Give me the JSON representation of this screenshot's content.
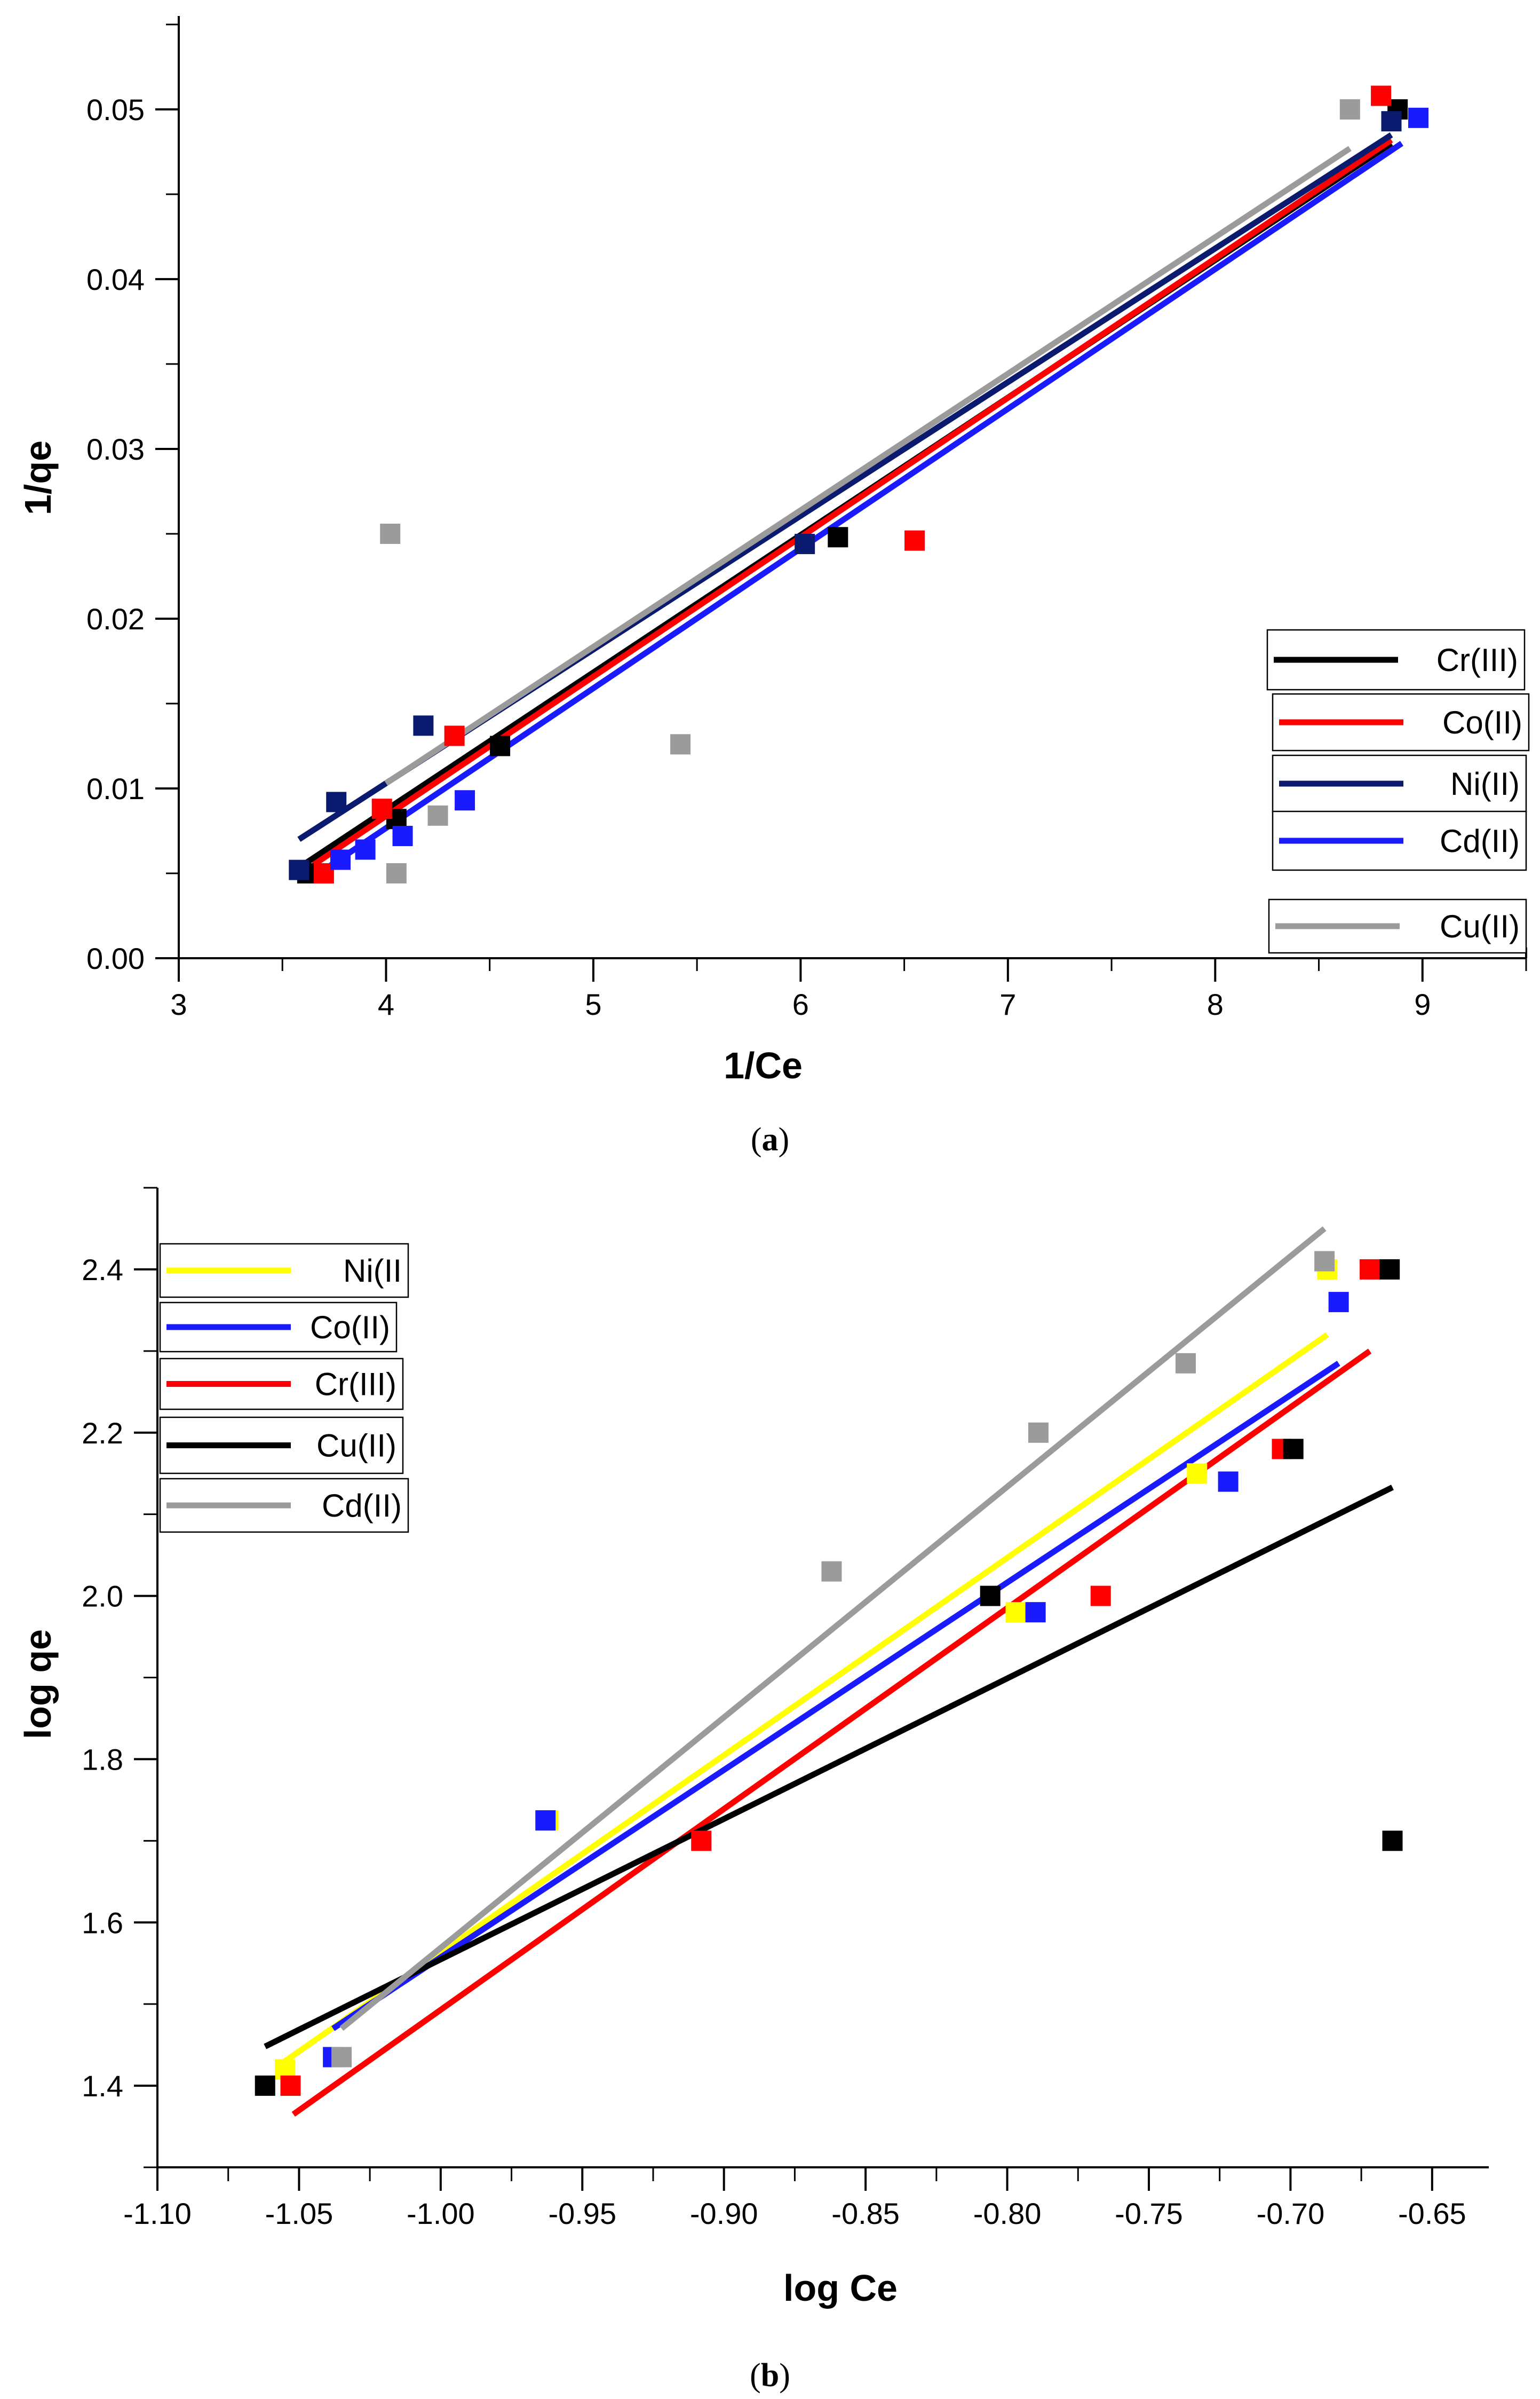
{
  "chart_data": [
    {
      "type": "scatter",
      "caption": "(a)",
      "xlabel": "1/Ce",
      "ylabel": "1/qe",
      "xlim": [
        3,
        9.5
      ],
      "ylim": [
        0,
        0.0555
      ],
      "xticks": [
        3,
        4,
        5,
        6,
        7,
        8,
        9
      ],
      "xtick_labels": [
        "3",
        "4",
        "5",
        "6",
        "7",
        "8",
        "9"
      ],
      "yticks": [
        0.0,
        0.01,
        0.02,
        0.03,
        0.04,
        0.05
      ],
      "ytick_labels": [
        "0.00",
        "0.01",
        "0.02",
        "0.03",
        "0.04",
        "0.05"
      ],
      "grid": false,
      "legend_position": "bottom-right",
      "series": [
        {
          "name": "Cr(III)",
          "color": "#000000",
          "points": [
            [
              3.62,
              0.005
            ],
            [
              4.05,
              0.0082
            ],
            [
              4.55,
              0.0125
            ],
            [
              6.18,
              0.0248
            ],
            [
              8.88,
              0.05
            ]
          ],
          "fit": [
            [
              3.6,
              0.0055
            ],
            [
              8.85,
              0.048
            ]
          ]
        },
        {
          "name": "Co(II)",
          "color": "#ff0000",
          "points": [
            [
              3.7,
              0.005
            ],
            [
              3.98,
              0.0088
            ],
            [
              4.33,
              0.0131
            ],
            [
              6.55,
              0.0246
            ],
            [
              8.8,
              0.0508
            ]
          ],
          "fit": [
            [
              3.65,
              0.0055
            ],
            [
              8.85,
              0.0482
            ]
          ]
        },
        {
          "name": "Ni(II)",
          "color": "#0a1a6e",
          "points": [
            [
              3.58,
              0.0052
            ],
            [
              3.76,
              0.0092
            ],
            [
              4.18,
              0.0137
            ],
            [
              6.02,
              0.0244
            ],
            [
              8.85,
              0.0493
            ]
          ],
          "fit": [
            [
              3.58,
              0.007
            ],
            [
              8.85,
              0.0485
            ]
          ]
        },
        {
          "name": "Cd(II)",
          "color": "#1a1aff",
          "points": [
            [
              3.78,
              0.0058
            ],
            [
              3.9,
              0.0064
            ],
            [
              4.08,
              0.0072
            ],
            [
              4.38,
              0.0093
            ],
            [
              8.98,
              0.0495
            ]
          ],
          "fit": [
            [
              3.7,
              0.0052
            ],
            [
              8.9,
              0.048
            ]
          ]
        },
        {
          "name": "Cu(II)",
          "color": "#9b9b9b",
          "points": [
            [
              4.02,
              0.025
            ],
            [
              4.25,
              0.0084
            ],
            [
              4.05,
              0.005
            ],
            [
              5.42,
              0.0126
            ],
            [
              8.65,
              0.05
            ]
          ],
          "fit": [
            [
              4.0,
              0.0103
            ],
            [
              8.65,
              0.0477
            ]
          ]
        }
      ]
    },
    {
      "type": "scatter",
      "caption": "(b)",
      "xlabel": "log Ce",
      "ylabel": "log qe",
      "xlim": [
        -1.1,
        -0.63
      ],
      "ylim": [
        1.3,
        2.5
      ],
      "xticks": [
        -1.1,
        -1.05,
        -1.0,
        -0.95,
        -0.9,
        -0.85,
        -0.8,
        -0.75,
        -0.7,
        -0.65
      ],
      "xtick_labels": [
        "-1.10",
        "-1.05",
        "-1.00",
        "-0.95",
        "-0.90",
        "-0.85",
        "-0.80",
        "-0.75",
        "-0.70",
        "-0.65"
      ],
      "yticks": [
        1.4,
        1.6,
        1.8,
        2.0,
        2.2,
        2.4
      ],
      "ytick_labels": [
        "1.4",
        "1.6",
        "1.8",
        "2.0",
        "2.2",
        "2.4"
      ],
      "grid": false,
      "legend_position": "top-left",
      "series": [
        {
          "name": "Ni(II",
          "color": "#ffff00",
          "points": [
            [
              -1.055,
              1.42
            ],
            [
              -0.962,
              1.725
            ],
            [
              -0.797,
              1.98
            ],
            [
              -0.733,
              2.15
            ],
            [
              -0.687,
              2.4
            ]
          ],
          "fit": [
            [
              -1.055,
              1.43
            ],
            [
              -0.687,
              2.32
            ]
          ]
        },
        {
          "name": "Co(II)",
          "color": "#1a1aff",
          "points": [
            [
              -1.038,
              1.435
            ],
            [
              -0.963,
              1.725
            ],
            [
              -0.79,
              1.98
            ],
            [
              -0.722,
              2.14
            ],
            [
              -0.683,
              2.36
            ]
          ],
          "fit": [
            [
              -1.038,
              1.47
            ],
            [
              -0.683,
              2.285
            ]
          ]
        },
        {
          "name": "Cr(III)",
          "color": "#ff0000",
          "points": [
            [
              -1.053,
              1.4
            ],
            [
              -0.908,
              1.7
            ],
            [
              -0.767,
              2.0
            ],
            [
              -0.703,
              2.18
            ],
            [
              -0.672,
              2.4
            ]
          ],
          "fit": [
            [
              -1.052,
              1.365
            ],
            [
              -0.672,
              2.3
            ]
          ]
        },
        {
          "name": "Cu(II)",
          "color": "#000000",
          "points": [
            [
              -1.062,
              1.4
            ],
            [
              -0.806,
              2.0
            ],
            [
              -0.699,
              2.18
            ],
            [
              -0.665,
              2.4
            ],
            [
              -0.664,
              1.7
            ]
          ],
          "fit": [
            [
              -1.062,
              1.448
            ],
            [
              -0.664,
              2.133
            ]
          ]
        },
        {
          "name": "Cd(II)",
          "color": "#9b9b9b",
          "points": [
            [
              -1.035,
              1.435
            ],
            [
              -0.862,
              2.03
            ],
            [
              -0.789,
              2.2
            ],
            [
              -0.737,
              2.285
            ],
            [
              -0.688,
              2.41
            ]
          ],
          "fit": [
            [
              -1.035,
              1.47
            ],
            [
              -0.688,
              2.45
            ]
          ]
        }
      ]
    }
  ]
}
